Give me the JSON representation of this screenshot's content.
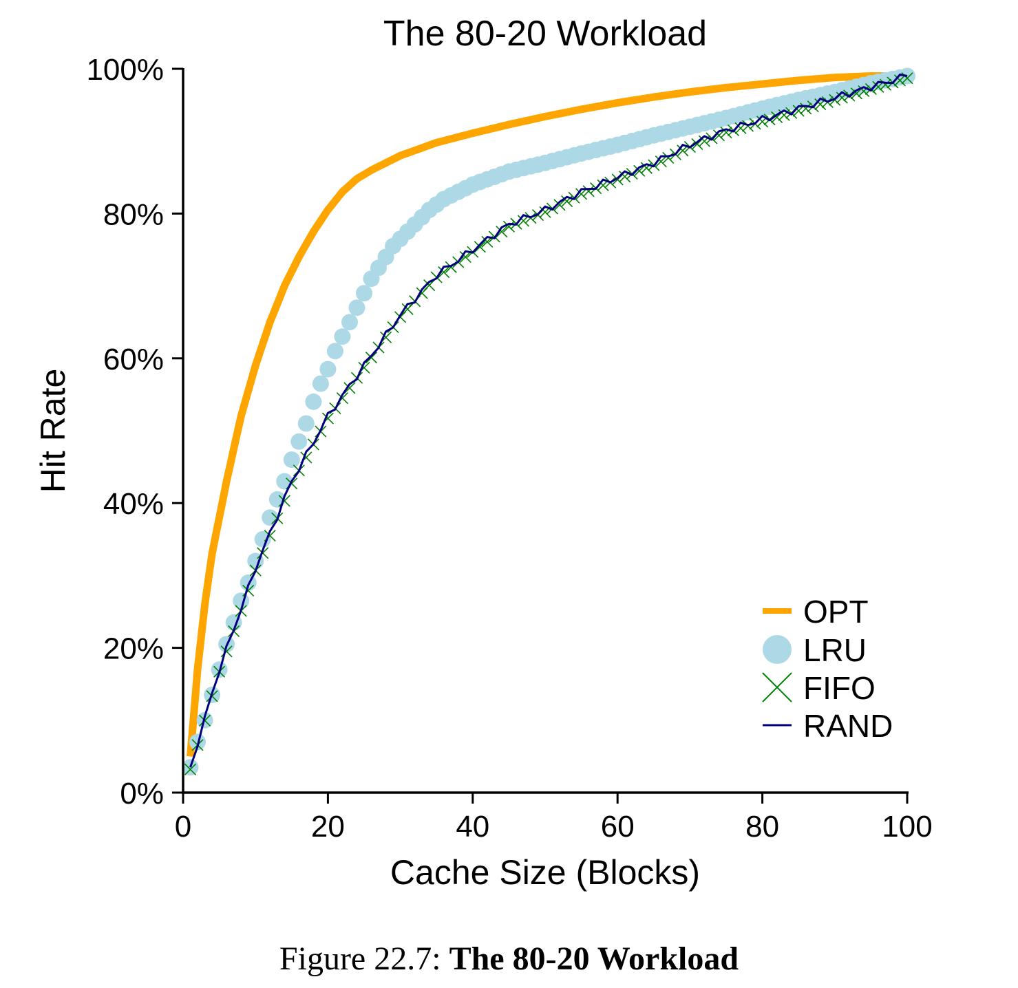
{
  "chart_data": {
    "type": "line",
    "title": "The 80-20 Workload",
    "xlabel": "Cache Size (Blocks)",
    "ylabel": "Hit Rate",
    "xlim": [
      0,
      100
    ],
    "ylim": [
      0,
      100
    ],
    "x_ticks": [
      0,
      20,
      40,
      60,
      80,
      100
    ],
    "x_tick_labels": [
      "0",
      "20",
      "40",
      "60",
      "80",
      "100"
    ],
    "y_ticks": [
      0,
      20,
      40,
      60,
      80,
      100
    ],
    "y_tick_labels": [
      "0%",
      "20%",
      "40%",
      "60%",
      "80%",
      "100%"
    ],
    "grid": false,
    "legend_position": "bottom-right",
    "series": [
      {
        "name": "OPT",
        "style": "thick-line",
        "color": "#FFA500",
        "x": [
          1,
          2,
          3,
          4,
          5,
          6,
          8,
          10,
          12,
          14,
          16,
          18,
          20,
          22,
          24,
          26,
          28,
          30,
          35,
          40,
          45,
          50,
          55,
          60,
          65,
          70,
          75,
          80,
          85,
          90,
          95,
          100
        ],
        "y": [
          5,
          17,
          26,
          33,
          38,
          43,
          52,
          59,
          65,
          70,
          74,
          77.5,
          80.5,
          83,
          84.8,
          86,
          87,
          88,
          89.8,
          91.1,
          92.3,
          93.4,
          94.4,
          95.3,
          96.1,
          96.8,
          97.4,
          97.9,
          98.4,
          98.8,
          99,
          99
        ]
      },
      {
        "name": "LRU",
        "style": "circle-markers",
        "color": "#ADD8E6",
        "x": [
          1,
          2,
          3,
          4,
          5,
          6,
          7,
          8,
          9,
          10,
          11,
          12,
          13,
          14,
          15,
          16,
          17,
          18,
          19,
          20,
          21,
          22,
          23,
          24,
          25,
          26,
          27,
          28,
          29,
          30,
          32,
          34,
          36,
          38,
          40,
          45,
          50,
          55,
          60,
          65,
          70,
          75,
          80,
          85,
          90,
          95,
          100
        ],
        "y": [
          3.5,
          7,
          10,
          13.5,
          17,
          20.5,
          23.5,
          26.5,
          29,
          32,
          35,
          38,
          40.5,
          43,
          46,
          48.5,
          51,
          54,
          56.5,
          58.5,
          61,
          63,
          65,
          67,
          69,
          71,
          72.5,
          74,
          75.5,
          76.5,
          78.5,
          80.5,
          82,
          83,
          84,
          85.8,
          87,
          88.3,
          89.5,
          90.8,
          92,
          93.2,
          94.5,
          95.7,
          96.8,
          98,
          99
        ]
      },
      {
        "name": "FIFO",
        "style": "x-markers",
        "color": "#008000",
        "x": [
          1,
          5,
          10,
          15,
          20,
          25,
          30,
          35,
          40,
          45,
          50,
          55,
          60,
          65,
          70,
          75,
          80,
          85,
          90,
          95,
          100
        ],
        "y": [
          3.5,
          17,
          31,
          43,
          52,
          59,
          66,
          71.5,
          75,
          78.5,
          80.5,
          83,
          85,
          87,
          89.5,
          91.5,
          93,
          94.5,
          96,
          97.5,
          99
        ]
      },
      {
        "name": "RAND",
        "style": "thin-line",
        "color": "#000080",
        "x": [
          1,
          5,
          10,
          15,
          20,
          25,
          30,
          35,
          40,
          45,
          50,
          55,
          60,
          65,
          70,
          75,
          80,
          85,
          90,
          95,
          100
        ],
        "y": [
          3.5,
          17,
          31,
          43,
          52,
          59,
          66,
          71.5,
          75,
          78.5,
          80.5,
          83,
          85,
          87,
          89.5,
          91.5,
          93,
          94.5,
          96,
          97.5,
          99
        ]
      }
    ]
  },
  "caption": {
    "prefix": "Figure 22.7: ",
    "title": "The 80-20 Workload"
  }
}
